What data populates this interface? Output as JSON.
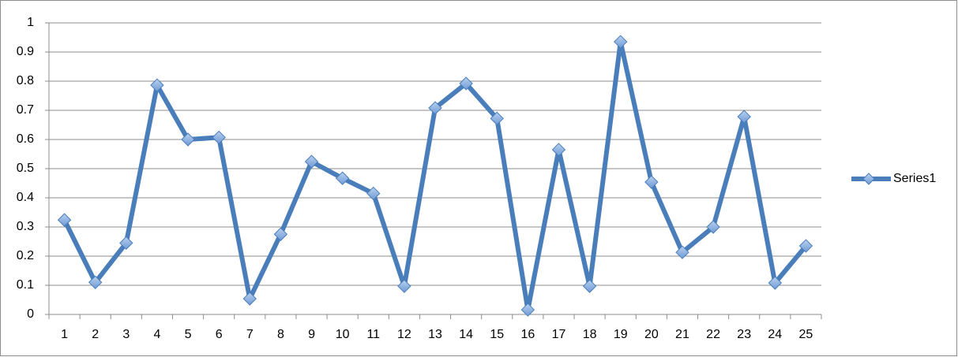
{
  "chart_data": {
    "type": "line",
    "categories": [
      1,
      2,
      3,
      4,
      5,
      6,
      7,
      8,
      9,
      10,
      11,
      12,
      13,
      14,
      15,
      16,
      17,
      18,
      19,
      20,
      21,
      22,
      23,
      24,
      25
    ],
    "series": [
      {
        "name": "Series1",
        "color": "#4a7ebb",
        "values": [
          0.324,
          0.11,
          0.245,
          0.786,
          0.6,
          0.607,
          0.054,
          0.275,
          0.524,
          0.467,
          0.415,
          0.097,
          0.708,
          0.792,
          0.672,
          0.016,
          0.565,
          0.097,
          0.935,
          0.454,
          0.213,
          0.3,
          0.678,
          0.108,
          0.235
        ]
      }
    ],
    "ylim": [
      0,
      1
    ],
    "yticks": [
      0,
      0.1,
      0.2,
      0.3,
      0.4,
      0.5,
      0.6,
      0.7,
      0.8,
      0.9,
      1
    ],
    "grid": true,
    "legend": "right"
  }
}
